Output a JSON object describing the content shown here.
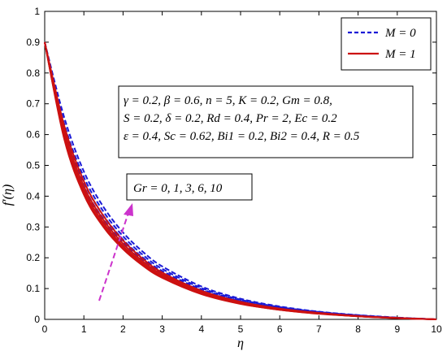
{
  "chart_data": {
    "type": "line",
    "xlabel": "η",
    "ylabel": "f′(η)",
    "xlim": [
      0,
      10
    ],
    "ylim": [
      0,
      1
    ],
    "xticks": [
      "0",
      "1",
      "2",
      "3",
      "4",
      "5",
      "6",
      "7",
      "8",
      "9",
      "10"
    ],
    "yticks": [
      "0",
      "0.1",
      "0.2",
      "0.3",
      "0.4",
      "0.5",
      "0.6",
      "0.7",
      "0.8",
      "0.9",
      "1"
    ],
    "legend": {
      "placement": "top-right",
      "entries": [
        {
          "label": "M = 0",
          "color": "#1a1ad6",
          "style": "dashed"
        },
        {
          "label": "M = 1",
          "color": "#cc1111",
          "style": "solid"
        }
      ]
    },
    "parameters_box": {
      "line1": "γ = 0.2, β = 0.6, n = 5, K = 0.2, Gm = 0.8,",
      "line2": "S = 0.2, δ = 0.2, Rd = 0.4, Pr = 2, Ec = 0.2",
      "line3": "ε = 0.4, Sc = 0.62, Bi1 = 0.2, Bi2 = 0.4, R = 0.5"
    },
    "arrow_annotation": {
      "text": "Gr = 0, 1, 3, 6, 10",
      "color": "#cc33cc"
    },
    "x": [
      0,
      0.5,
      1,
      1.5,
      2,
      2.5,
      3,
      4,
      5,
      6,
      7,
      8,
      9,
      10
    ],
    "series": [
      {
        "group": "M = 0",
        "Gr": 0,
        "style": "dashed",
        "values": [
          0.9,
          0.6,
          0.425,
          0.32,
          0.245,
          0.19,
          0.148,
          0.092,
          0.058,
          0.036,
          0.022,
          0.012,
          0.005,
          0
        ]
      },
      {
        "group": "M = 0",
        "Gr": 1,
        "style": "dashed",
        "values": [
          0.9,
          0.61,
          0.432,
          0.326,
          0.25,
          0.194,
          0.151,
          0.094,
          0.059,
          0.037,
          0.022,
          0.012,
          0.005,
          0
        ]
      },
      {
        "group": "M = 0",
        "Gr": 3,
        "style": "dashed",
        "values": [
          0.9,
          0.62,
          0.445,
          0.337,
          0.259,
          0.201,
          0.157,
          0.098,
          0.062,
          0.038,
          0.023,
          0.013,
          0.005,
          0
        ]
      },
      {
        "group": "M = 0",
        "Gr": 6,
        "style": "dashed",
        "values": [
          0.9,
          0.635,
          0.462,
          0.35,
          0.27,
          0.21,
          0.164,
          0.102,
          0.064,
          0.04,
          0.024,
          0.013,
          0.005,
          0
        ]
      },
      {
        "group": "M = 0",
        "Gr": 10,
        "style": "dashed",
        "values": [
          0.9,
          0.655,
          0.48,
          0.365,
          0.282,
          0.22,
          0.172,
          0.107,
          0.067,
          0.042,
          0.025,
          0.014,
          0.006,
          0
        ]
      },
      {
        "group": "M = 1",
        "Gr": 0,
        "style": "solid",
        "values": [
          0.9,
          0.585,
          0.405,
          0.3,
          0.228,
          0.175,
          0.135,
          0.082,
          0.05,
          0.031,
          0.018,
          0.01,
          0.004,
          0
        ]
      },
      {
        "group": "M = 1",
        "Gr": 1,
        "style": "solid",
        "values": [
          0.9,
          0.59,
          0.41,
          0.305,
          0.232,
          0.178,
          0.137,
          0.083,
          0.051,
          0.031,
          0.019,
          0.01,
          0.004,
          0
        ]
      },
      {
        "group": "M = 1",
        "Gr": 3,
        "style": "solid",
        "values": [
          0.9,
          0.6,
          0.42,
          0.313,
          0.238,
          0.183,
          0.141,
          0.086,
          0.053,
          0.032,
          0.019,
          0.01,
          0.004,
          0
        ]
      },
      {
        "group": "M = 1",
        "Gr": 6,
        "style": "solid",
        "values": [
          0.9,
          0.612,
          0.432,
          0.323,
          0.246,
          0.189,
          0.146,
          0.089,
          0.055,
          0.034,
          0.02,
          0.011,
          0.004,
          0
        ]
      },
      {
        "group": "M = 1",
        "Gr": 10,
        "style": "solid",
        "values": [
          0.9,
          0.628,
          0.448,
          0.336,
          0.256,
          0.197,
          0.152,
          0.093,
          0.057,
          0.035,
          0.021,
          0.011,
          0.005,
          0
        ]
      }
    ]
  }
}
